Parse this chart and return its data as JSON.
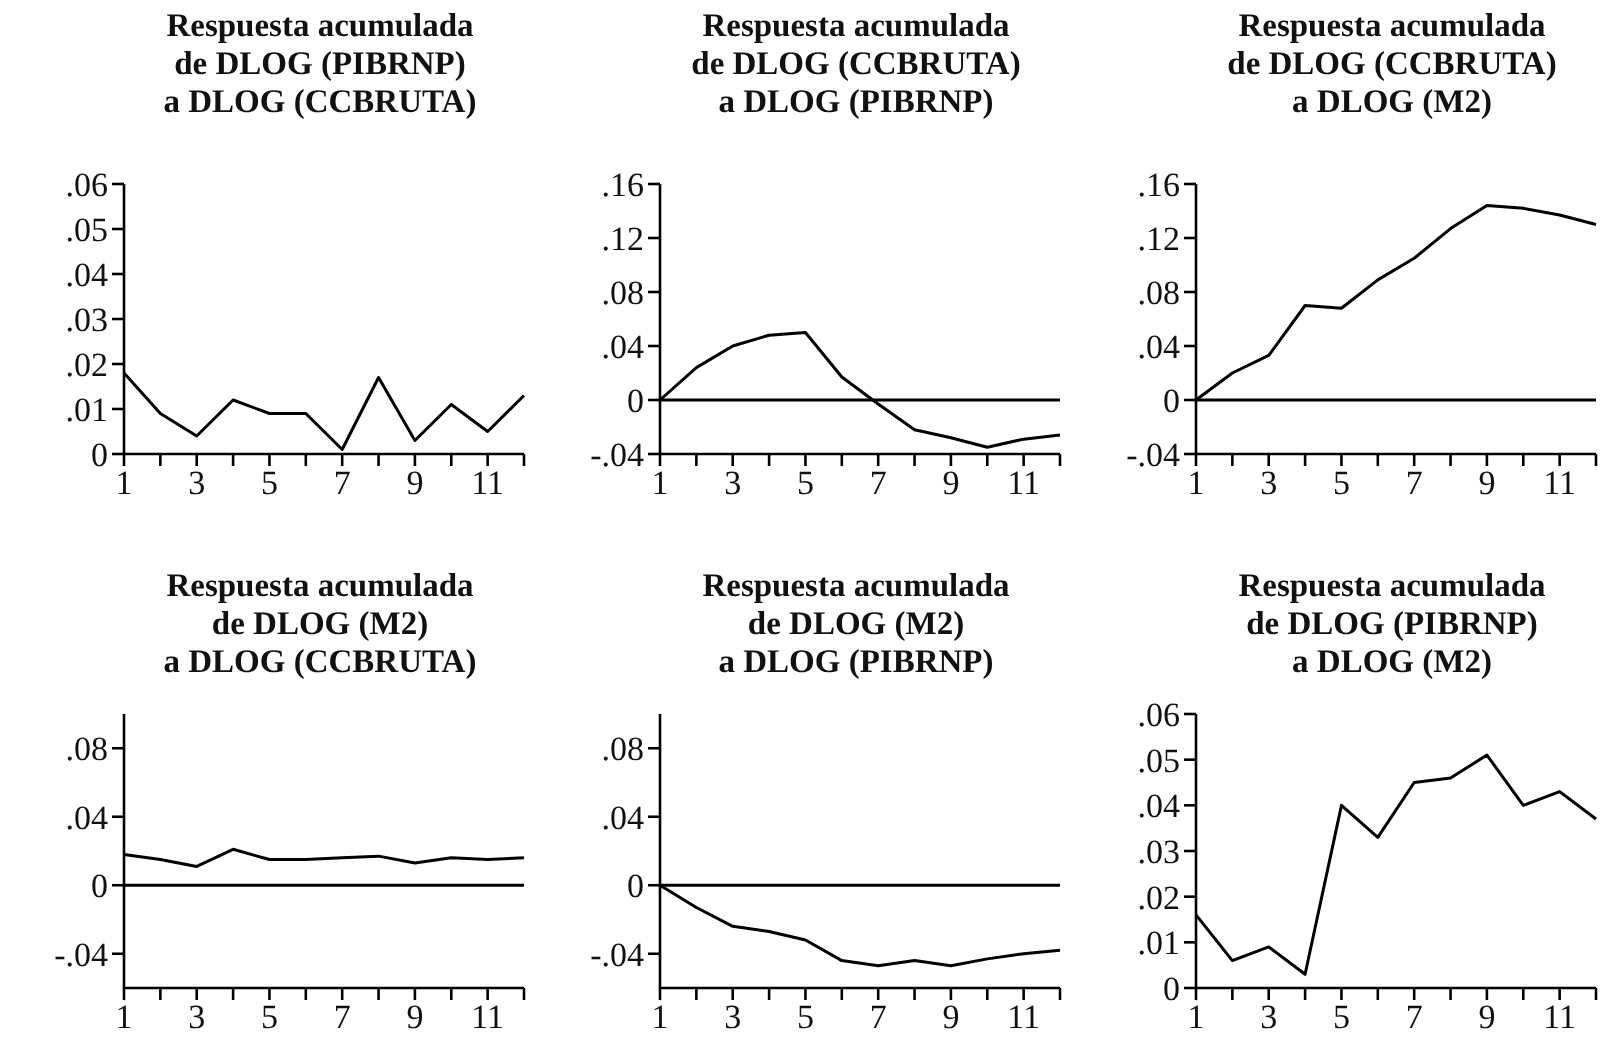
{
  "chart_data": [
    {
      "type": "line",
      "title": "Respuesta acumulada\nde DLOG (PIBRNP)\na DLOG (CCBRUTA)",
      "x": [
        1,
        2,
        3,
        4,
        5,
        6,
        7,
        8,
        9,
        10,
        11,
        12
      ],
      "values": [
        0.018,
        0.009,
        0.004,
        0.012,
        0.009,
        0.009,
        0.001,
        0.017,
        0.003,
        0.011,
        0.005,
        0.013
      ],
      "color": "#000000",
      "xlim": [
        1,
        12
      ],
      "xticks": [
        1,
        {
          "value": 2,
          "label": null
        },
        3,
        {
          "value": 4,
          "label": null
        },
        5,
        {
          "value": 6,
          "label": null
        },
        7,
        {
          "value": 8,
          "label": null
        },
        9,
        {
          "value": 10,
          "label": null
        },
        11,
        {
          "value": 12,
          "label": null
        }
      ],
      "ylim": [
        0,
        0.06
      ],
      "yticks": [
        {
          "value": 0,
          "label": "0"
        },
        {
          "value": 0.01,
          "label": ".01"
        },
        {
          "value": 0.02,
          "label": ".02"
        },
        {
          "value": 0.03,
          "label": ".03"
        },
        {
          "value": 0.04,
          "label": ".04"
        },
        {
          "value": 0.05,
          "label": ".05"
        },
        {
          "value": 0.06,
          "label": ".06"
        }
      ]
    },
    {
      "type": "line",
      "title": "Respuesta acumulada\nde DLOG (CCBRUTA)\na DLOG (PIBRNP)",
      "x": [
        1,
        2,
        3,
        4,
        5,
        6,
        7,
        8,
        9,
        10,
        11,
        12
      ],
      "values": [
        0,
        0.024,
        0.04,
        0.048,
        0.05,
        0.017,
        -0.003,
        -0.022,
        -0.028,
        -0.035,
        -0.029,
        -0.026
      ],
      "color": "#000000",
      "xlim": [
        1,
        12
      ],
      "xticks": [
        1,
        {
          "value": 2,
          "label": null
        },
        3,
        {
          "value": 4,
          "label": null
        },
        5,
        {
          "value": 6,
          "label": null
        },
        7,
        {
          "value": 8,
          "label": null
        },
        9,
        {
          "value": 10,
          "label": null
        },
        11,
        {
          "value": 12,
          "label": null
        }
      ],
      "ylim": [
        -0.04,
        0.16
      ],
      "yticks": [
        {
          "value": -0.04,
          "label": "-.04"
        },
        {
          "value": 0,
          "label": "0"
        },
        {
          "value": 0.04,
          "label": ".04"
        },
        {
          "value": 0.08,
          "label": ".08"
        },
        {
          "value": 0.12,
          "label": ".12"
        },
        {
          "value": 0.16,
          "label": ".16"
        }
      ],
      "ref_lines": [
        {
          "axis": "y",
          "value": 0,
          "color": "#000000"
        }
      ]
    },
    {
      "type": "line",
      "title": "Respuesta acumulada\nde DLOG (CCBRUTA)\na DLOG (M2)",
      "x": [
        1,
        2,
        3,
        4,
        5,
        6,
        7,
        8,
        9,
        10,
        11,
        12
      ],
      "values": [
        0,
        0.02,
        0.033,
        0.07,
        0.068,
        0.089,
        0.105,
        0.127,
        0.144,
        0.142,
        0.137,
        0.13
      ],
      "color": "#000000",
      "xlim": [
        1,
        12
      ],
      "xticks": [
        1,
        {
          "value": 2,
          "label": null
        },
        3,
        {
          "value": 4,
          "label": null
        },
        5,
        {
          "value": 6,
          "label": null
        },
        7,
        {
          "value": 8,
          "label": null
        },
        9,
        {
          "value": 10,
          "label": null
        },
        11,
        {
          "value": 12,
          "label": null
        }
      ],
      "ylim": [
        -0.04,
        0.16
      ],
      "yticks": [
        {
          "value": -0.04,
          "label": "-.04"
        },
        {
          "value": 0,
          "label": "0"
        },
        {
          "value": 0.04,
          "label": ".04"
        },
        {
          "value": 0.08,
          "label": ".08"
        },
        {
          "value": 0.12,
          "label": ".12"
        },
        {
          "value": 0.16,
          "label": ".16"
        }
      ],
      "ref_lines": [
        {
          "axis": "y",
          "value": 0,
          "color": "#000000"
        }
      ]
    },
    {
      "type": "line",
      "title": "Respuesta acumulada\nde DLOG (M2)\na DLOG (CCBRUTA)",
      "x": [
        1,
        2,
        3,
        4,
        5,
        6,
        7,
        8,
        9,
        10,
        11,
        12
      ],
      "values": [
        0.018,
        0.015,
        0.011,
        0.021,
        0.015,
        0.015,
        0.016,
        0.017,
        0.013,
        0.016,
        0.015,
        0.016
      ],
      "color": "#000000",
      "xlim": [
        1,
        12
      ],
      "xticks": [
        1,
        {
          "value": 2,
          "label": null
        },
        3,
        {
          "value": 4,
          "label": null
        },
        5,
        {
          "value": 6,
          "label": null
        },
        7,
        {
          "value": 8,
          "label": null
        },
        9,
        {
          "value": 10,
          "label": null
        },
        11,
        {
          "value": 12,
          "label": null
        }
      ],
      "ylim": [
        -0.06,
        0.1
      ],
      "yticks": [
        {
          "value": -0.04,
          "label": "-.04"
        },
        {
          "value": 0,
          "label": "0"
        },
        {
          "value": 0.04,
          "label": ".04"
        },
        {
          "value": 0.08,
          "label": ".08"
        }
      ],
      "ref_lines": [
        {
          "axis": "y",
          "value": 0,
          "color": "#000000"
        }
      ]
    },
    {
      "type": "line",
      "title": "Respuesta acumulada\nde DLOG (M2)\na DLOG (PIBRNP)",
      "x": [
        1,
        2,
        3,
        4,
        5,
        6,
        7,
        8,
        9,
        10,
        11,
        12
      ],
      "values": [
        0,
        -0.013,
        -0.024,
        -0.027,
        -0.032,
        -0.044,
        -0.047,
        -0.044,
        -0.047,
        -0.043,
        -0.04,
        -0.038
      ],
      "color": "#000000",
      "xlim": [
        1,
        12
      ],
      "xticks": [
        1,
        {
          "value": 2,
          "label": null
        },
        3,
        {
          "value": 4,
          "label": null
        },
        5,
        {
          "value": 6,
          "label": null
        },
        7,
        {
          "value": 8,
          "label": null
        },
        9,
        {
          "value": 10,
          "label": null
        },
        11,
        {
          "value": 12,
          "label": null
        }
      ],
      "ylim": [
        -0.06,
        0.1
      ],
      "yticks": [
        {
          "value": -0.04,
          "label": "-.04"
        },
        {
          "value": 0,
          "label": "0"
        },
        {
          "value": 0.04,
          "label": ".04"
        },
        {
          "value": 0.08,
          "label": ".08"
        }
      ],
      "ref_lines": [
        {
          "axis": "y",
          "value": 0,
          "color": "#000000"
        }
      ]
    },
    {
      "type": "line",
      "title": "Respuesta acumulada\nde DLOG (PIBRNP)\na DLOG (M2)",
      "x": [
        1,
        2,
        3,
        4,
        5,
        6,
        7,
        8,
        9,
        10,
        11,
        12
      ],
      "values": [
        0.016,
        0.006,
        0.009,
        0.003,
        0.04,
        0.033,
        0.045,
        0.046,
        0.051,
        0.04,
        0.043,
        0.037
      ],
      "color": "#000000",
      "xlim": [
        1,
        12
      ],
      "xticks": [
        1,
        {
          "value": 2,
          "label": null
        },
        3,
        {
          "value": 4,
          "label": null
        },
        5,
        {
          "value": 6,
          "label": null
        },
        7,
        {
          "value": 8,
          "label": null
        },
        9,
        {
          "value": 10,
          "label": null
        },
        11,
        {
          "value": 12,
          "label": null
        }
      ],
      "ylim": [
        0,
        0.06
      ],
      "yticks": [
        {
          "value": 0,
          "label": "0"
        },
        {
          "value": 0.01,
          "label": ".01"
        },
        {
          "value": 0.02,
          "label": ".02"
        },
        {
          "value": 0.03,
          "label": ".03"
        },
        {
          "value": 0.04,
          "label": ".04"
        },
        {
          "value": 0.05,
          "label": ".05"
        },
        {
          "value": 0.06,
          "label": ".06"
        }
      ]
    }
  ]
}
